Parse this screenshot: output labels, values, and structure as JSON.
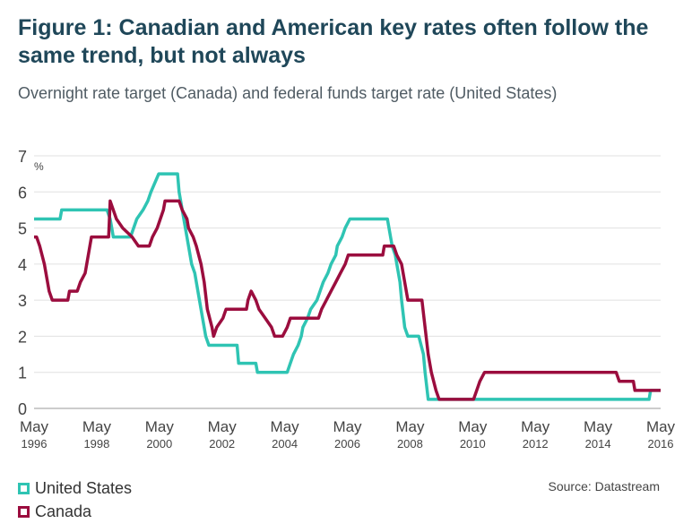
{
  "title": "Figure 1: Canadian and American key rates often follow the same trend, but not always",
  "subtitle": "Overnight rate target (Canada) and federal funds target rate (United States)",
  "source": "Source: Datastream",
  "colors": {
    "us": "#2fc4b3",
    "canada": "#9b0d3e",
    "grid": "#e0e0e0"
  },
  "chart_data": {
    "type": "line",
    "title": "Figure 1: Canadian and American key rates often follow the same trend, but not always",
    "subtitle": "Overnight rate target (Canada) and federal funds target rate (United States)",
    "ylabel": "%",
    "xlabel": "",
    "ylim": [
      0,
      7
    ],
    "xlim": [
      "May 1996",
      "May 2016"
    ],
    "yticks": [
      "0",
      "1",
      "2",
      "3",
      "4",
      "5",
      "6",
      "7"
    ],
    "xticks": [
      {
        "month": "May",
        "year": "1996"
      },
      {
        "month": "May",
        "year": "1998"
      },
      {
        "month": "May",
        "year": "2000"
      },
      {
        "month": "May",
        "year": "2002"
      },
      {
        "month": "May",
        "year": "2004"
      },
      {
        "month": "May",
        "year": "2006"
      },
      {
        "month": "May",
        "year": "2008"
      },
      {
        "month": "May",
        "year": "2010"
      },
      {
        "month": "May",
        "year": "2012"
      },
      {
        "month": "May",
        "year": "2014"
      },
      {
        "month": "May",
        "year": "2016"
      }
    ],
    "grid": true,
    "legend": "bottom-left",
    "series": [
      {
        "name": "United States",
        "color": "#2fc4b3",
        "points": [
          [
            "1996.37",
            5.25
          ],
          [
            "1997.2",
            5.25
          ],
          [
            "1997.25",
            5.5
          ],
          [
            "1998.7",
            5.5
          ],
          [
            "1998.8",
            5.25
          ],
          [
            "1998.85",
            5.0
          ],
          [
            "1998.9",
            4.75
          ],
          [
            "1999.45",
            4.75
          ],
          [
            "1999.55",
            5.0
          ],
          [
            "1999.65",
            5.25
          ],
          [
            "1999.85",
            5.5
          ],
          [
            "2000.0",
            5.75
          ],
          [
            "2000.1",
            6.0
          ],
          [
            "2000.35",
            6.5
          ],
          [
            "2000.95",
            6.5
          ],
          [
            "2001.0",
            6.0
          ],
          [
            "2001.1",
            5.5
          ],
          [
            "2001.2",
            5.0
          ],
          [
            "2001.3",
            4.5
          ],
          [
            "2001.4",
            4.0
          ],
          [
            "2001.5",
            3.75
          ],
          [
            "2001.65",
            3.0
          ],
          [
            "2001.75",
            2.5
          ],
          [
            "2001.85",
            2.0
          ],
          [
            "2001.95",
            1.75
          ],
          [
            "2002.85",
            1.75
          ],
          [
            "2002.9",
            1.25
          ],
          [
            "2003.45",
            1.25
          ],
          [
            "2003.5",
            1.0
          ],
          [
            "2004.45",
            1.0
          ],
          [
            "2004.55",
            1.25
          ],
          [
            "2004.65",
            1.5
          ],
          [
            "2004.8",
            1.75
          ],
          [
            "2004.9",
            2.0
          ],
          [
            "2004.95",
            2.25
          ],
          [
            "2005.1",
            2.5
          ],
          [
            "2005.2",
            2.75
          ],
          [
            "2005.4",
            3.0
          ],
          [
            "2005.5",
            3.25
          ],
          [
            "2005.6",
            3.5
          ],
          [
            "2005.75",
            3.75
          ],
          [
            "2005.85",
            4.0
          ],
          [
            "2006.0",
            4.25
          ],
          [
            "2006.05",
            4.5
          ],
          [
            "2006.2",
            4.75
          ],
          [
            "2006.3",
            5.0
          ],
          [
            "2006.45",
            5.25
          ],
          [
            "2007.65",
            5.25
          ],
          [
            "2007.75",
            4.75
          ],
          [
            "2007.8",
            4.5
          ],
          [
            "2007.9",
            4.25
          ],
          [
            "2007.95",
            4.0
          ],
          [
            "2008.05",
            3.5
          ],
          [
            "2008.1",
            3.0
          ],
          [
            "2008.2",
            2.25
          ],
          [
            "2008.3",
            2.0
          ],
          [
            "2008.65",
            2.0
          ],
          [
            "2008.8",
            1.5
          ],
          [
            "2008.85",
            1.0
          ],
          [
            "2008.95",
            0.25
          ],
          [
            "2016.0",
            0.25
          ],
          [
            "2016.05",
            0.5
          ],
          [
            "2016.37",
            0.5
          ]
        ]
      },
      {
        "name": "Canada",
        "color": "#9b0d3e",
        "points": [
          [
            "1996.37",
            4.75
          ],
          [
            "1996.45",
            4.75
          ],
          [
            "1996.55",
            4.5
          ],
          [
            "1996.7",
            4.0
          ],
          [
            "1996.85",
            3.25
          ],
          [
            "1996.95",
            3.0
          ],
          [
            "1997.45",
            3.0
          ],
          [
            "1997.5",
            3.25
          ],
          [
            "1997.75",
            3.25
          ],
          [
            "1997.85",
            3.5
          ],
          [
            "1998.0",
            3.75
          ],
          [
            "1998.1",
            4.25
          ],
          [
            "1998.2",
            4.75
          ],
          [
            "1998.75",
            4.75
          ],
          [
            "1998.8",
            5.75
          ],
          [
            "1999.0",
            5.25
          ],
          [
            "1999.2",
            5.0
          ],
          [
            "1999.5",
            4.75
          ],
          [
            "1999.7",
            4.5
          ],
          [
            "2000.05",
            4.5
          ],
          [
            "2000.15",
            4.75
          ],
          [
            "2000.3",
            5.0
          ],
          [
            "2000.5",
            5.5
          ],
          [
            "2000.55",
            5.75
          ],
          [
            "2001.0",
            5.75
          ],
          [
            "2001.1",
            5.5
          ],
          [
            "2001.25",
            5.25
          ],
          [
            "2001.3",
            5.0
          ],
          [
            "2001.45",
            4.75
          ],
          [
            "2001.55",
            4.5
          ],
          [
            "2001.7",
            4.0
          ],
          [
            "2001.8",
            3.5
          ],
          [
            "2001.9",
            2.75
          ],
          [
            "2002.05",
            2.25
          ],
          [
            "2002.1",
            2.0
          ],
          [
            "2002.2",
            2.25
          ],
          [
            "2002.4",
            2.5
          ],
          [
            "2002.5",
            2.75
          ],
          [
            "2003.15",
            2.75
          ],
          [
            "2003.2",
            3.0
          ],
          [
            "2003.3",
            3.25
          ],
          [
            "2003.45",
            3.0
          ],
          [
            "2003.55",
            2.75
          ],
          [
            "2003.75",
            2.5
          ],
          [
            "2003.95",
            2.25
          ],
          [
            "2004.05",
            2.0
          ],
          [
            "2004.3",
            2.0
          ],
          [
            "2004.45",
            2.25
          ],
          [
            "2004.55",
            2.5
          ],
          [
            "2005.45",
            2.5
          ],
          [
            "2005.55",
            2.75
          ],
          [
            "2005.7",
            3.0
          ],
          [
            "2005.85",
            3.25
          ],
          [
            "2006.0",
            3.5
          ],
          [
            "2006.15",
            3.75
          ],
          [
            "2006.3",
            4.0
          ],
          [
            "2006.4",
            4.25
          ],
          [
            "2007.5",
            4.25
          ],
          [
            "2007.55",
            4.5
          ],
          [
            "2007.85",
            4.5
          ],
          [
            "2007.95",
            4.25
          ],
          [
            "2008.1",
            4.0
          ],
          [
            "2008.2",
            3.5
          ],
          [
            "2008.3",
            3.0
          ],
          [
            "2008.75",
            3.0
          ],
          [
            "2008.85",
            2.25
          ],
          [
            "2008.95",
            1.5
          ],
          [
            "2009.05",
            1.0
          ],
          [
            "2009.2",
            0.5
          ],
          [
            "2009.3",
            0.25
          ],
          [
            "2010.4",
            0.25
          ],
          [
            "2010.5",
            0.5
          ],
          [
            "2010.6",
            0.75
          ],
          [
            "2010.75",
            1.0
          ],
          [
            "2014.95",
            1.0
          ],
          [
            "2015.05",
            0.75
          ],
          [
            "2015.5",
            0.75
          ],
          [
            "2015.55",
            0.5
          ],
          [
            "2016.37",
            0.5
          ]
        ]
      }
    ]
  }
}
